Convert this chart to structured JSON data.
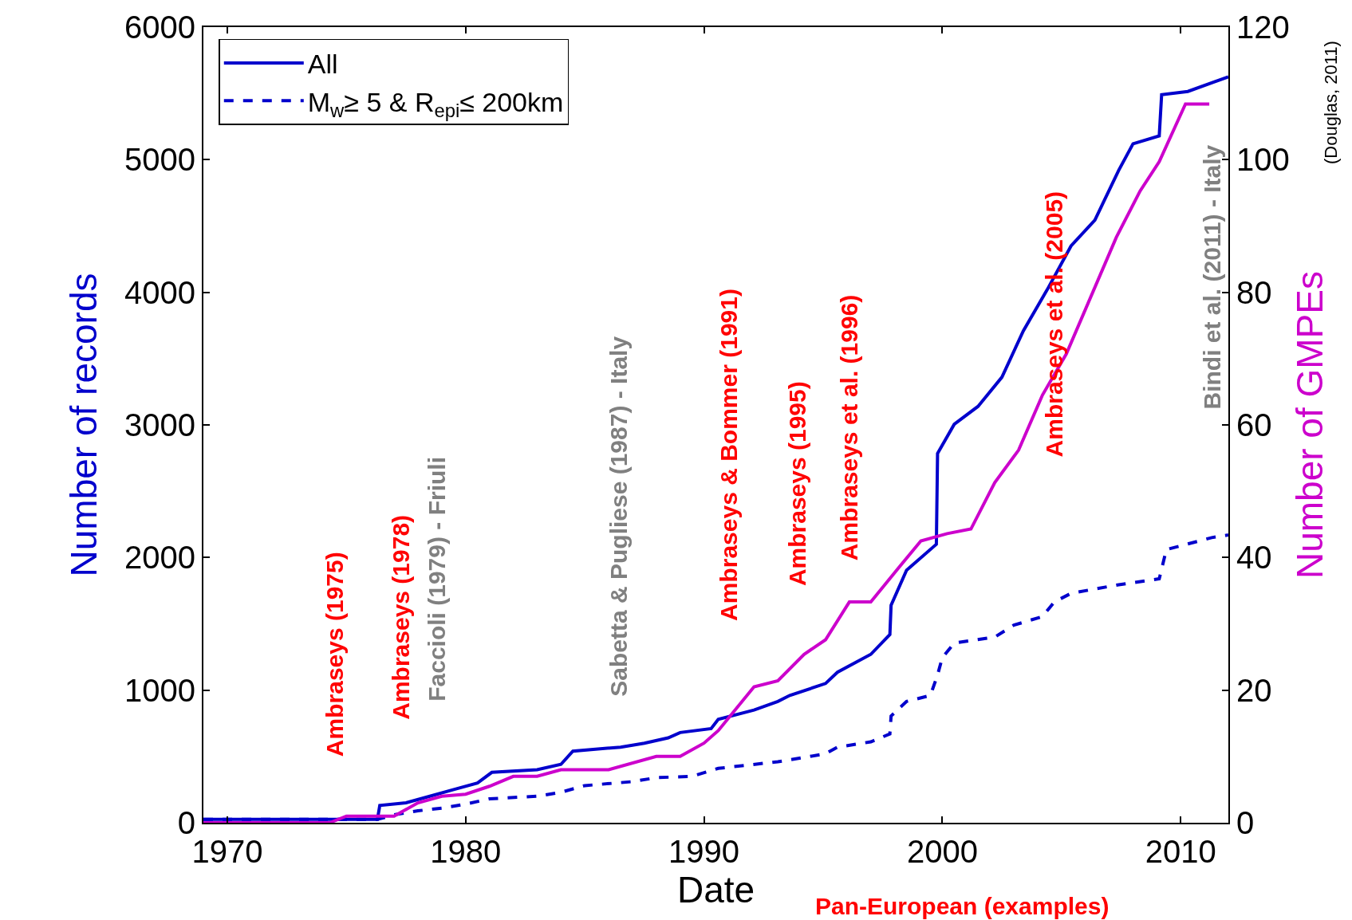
{
  "chart_data": {
    "type": "line",
    "xlabel": "Date",
    "ylabel": "Number of records",
    "y2label": "Number of GMPEs",
    "xlim": [
      1969,
      2012
    ],
    "xticks": [
      1970,
      1980,
      1990,
      2000,
      2010
    ],
    "ylim": [
      0,
      6000
    ],
    "yticks": [
      0,
      1000,
      2000,
      3000,
      4000,
      5000,
      6000
    ],
    "y2lim": [
      0,
      120
    ],
    "y2ticks": [
      0,
      20,
      40,
      60,
      80,
      100,
      120
    ],
    "legend": "top left",
    "marker": "none",
    "series": [
      {
        "name": "All",
        "color": "#0000cc",
        "line_style": "solid",
        "x": [
          1969,
          1976.3,
          1976.4,
          1977.5,
          1978.5,
          1979.5,
          1980.5,
          1981.1,
          1983,
          1984,
          1984.5,
          1986.5,
          1987.5,
          1988.5,
          1989,
          1990.3,
          1990.6,
          1992.1,
          1993.1,
          1993.6,
          1995.1,
          1995.6,
          1997.0,
          1997.8,
          1997.85,
          1998.5,
          1999.75,
          1999.8,
          2000.5,
          2001.5,
          2002.5,
          2003.4,
          2004.4,
          2005.4,
          2006.4,
          2007.4,
          2008,
          2009.1,
          2009.2,
          2010.3,
          2012
        ],
        "values": [
          25,
          25,
          130,
          150,
          200,
          250,
          300,
          380,
          400,
          440,
          540,
          570,
          600,
          640,
          680,
          710,
          780,
          850,
          915,
          960,
          1050,
          1135,
          1270,
          1420,
          1640,
          1905,
          2100,
          2785,
          3005,
          3140,
          3360,
          3710,
          4020,
          4350,
          4545,
          4920,
          5120,
          5180,
          5490,
          5515,
          5625
        ]
      },
      {
        "name": "M$_{w}$≥ 5 & R$_{epi}$≤ 200km",
        "color": "#0000cc",
        "line_style": "dashed",
        "x": [
          1969,
          1976.3,
          1977,
          1978,
          1979,
          1980,
          1981,
          1983,
          1984,
          1985,
          1987,
          1988,
          1989.5,
          1990.6,
          1993.1,
          1995.1,
          1995.6,
          1997.0,
          1997.8,
          1997.85,
          1998.5,
          1999.5,
          1999.8,
          2000,
          2000.5,
          2002.2,
          2003,
          2004.2,
          2004.7,
          2005.4,
          2007.4,
          2009.1,
          2009.4,
          2011.3,
          2012
        ],
        "values": [
          25,
          25,
          60,
          90,
          110,
          140,
          180,
          200,
          230,
          280,
          310,
          340,
          350,
          410,
          460,
          520,
          570,
          610,
          670,
          805,
          915,
          960,
          1115,
          1245,
          1355,
          1400,
          1490,
          1555,
          1665,
          1730,
          1795,
          1840,
          2060,
          2150,
          2170
        ]
      },
      {
        "name": null,
        "color": "#cc00cc",
        "line_style": "solid",
        "axis": "y2",
        "x": [
          1969,
          1974.3,
          1975,
          1977,
          1978,
          1979,
          1980,
          1981,
          1982,
          1983,
          1984,
          1986,
          1988,
          1989,
          1990,
          1990.6,
          1992.1,
          1993.1,
          1994.2,
          1995.1,
          1996.1,
          1997.0,
          1998.2,
          1999.1,
          2000.2,
          2001.2,
          2002.2,
          2003.2,
          2004.2,
          2005.2,
          2007.3,
          2008.3,
          2009.1,
          2010.2,
          2011.2
        ],
        "values": [
          0,
          0,
          1,
          1,
          3,
          4,
          4.3,
          5.5,
          7,
          7,
          8,
          8,
          10,
          10,
          12,
          13.9,
          20.5,
          21.4,
          25.4,
          27.6,
          33.3,
          33.3,
          38.6,
          42.5,
          43.6,
          44.3,
          51.3,
          56.2,
          64.5,
          70.7,
          88.3,
          95.3,
          99.7,
          108.4,
          108.4
        ]
      }
    ],
    "annotations": [
      "Ambraseys (1975)",
      "Ambraseys (1978)",
      "Faccioli (1979) - Friuli",
      "Sabetta & Pugliese (1987) - Italy",
      "Ambraseys & Bommer (1991)",
      "Ambraseys (1995)",
      "Ambraseys et al. (1996)",
      "Ambraseys et al. (2005)",
      "Bindi et al. (2011) - Italy",
      "(Douglas, 2011)",
      "Pan-European (examples)"
    ]
  }
}
